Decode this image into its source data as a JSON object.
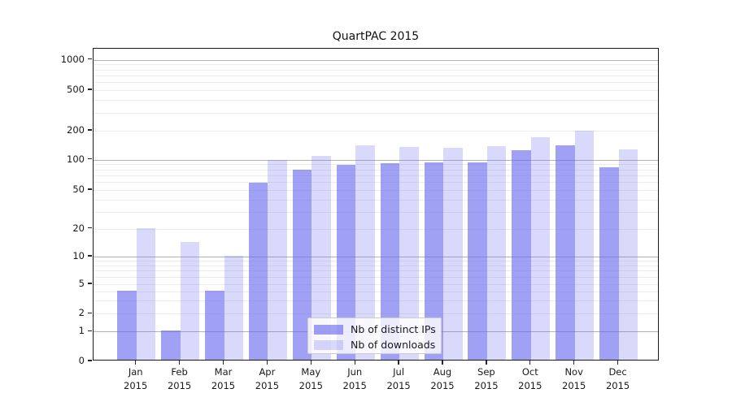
{
  "title": "QuartPAC 2015",
  "chart_data": {
    "type": "bar",
    "title": "QuartPAC 2015",
    "categories": [
      "Jan",
      "Feb",
      "Mar",
      "Apr",
      "May",
      "Jun",
      "Jul",
      "Aug",
      "Sep",
      "Oct",
      "Nov",
      "Dec"
    ],
    "category_year": "2015",
    "series": [
      {
        "name": "Nb of distinct IPs",
        "color": "#6666ee",
        "alpha": 0.62,
        "values": [
          4,
          1,
          4,
          58,
          78,
          88,
          90,
          93,
          92,
          122,
          138,
          82
        ]
      },
      {
        "name": "Nb of downloads",
        "color": "#6666ee",
        "alpha": 0.25,
        "values": [
          20,
          14,
          10,
          97,
          108,
          138,
          134,
          131,
          137,
          169,
          195,
          126
        ]
      }
    ],
    "yscale": "symlog",
    "yticks": [
      0,
      1,
      2,
      5,
      10,
      20,
      50,
      100,
      200,
      500,
      1000
    ],
    "ylim": [
      0,
      1300
    ],
    "grid": true,
    "legend_position": "lower center",
    "colors": {
      "bar_dark_rendered": "#a5a5f2",
      "bar_light_rendered": "#dcdcf8",
      "major_grid": "#b3b3b3",
      "minor_grid": "#ececec",
      "spine": "#1a1a1a",
      "text": "#191919"
    }
  }
}
